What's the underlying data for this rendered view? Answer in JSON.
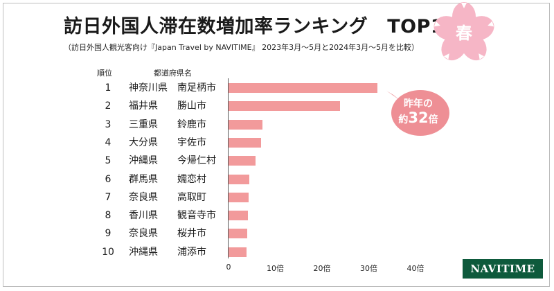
{
  "header": {
    "title": "訪日外国人滞在数増加率ランキング",
    "title_suffix": "TOP10",
    "subtitle": "（訪日外国人観光客向け『Japan Travel by NAVITIME』 2023年3月～5月と2024年3月～5月を比較）",
    "season_badge": "春"
  },
  "columns": {
    "rank": "順位",
    "region": "都道府県名"
  },
  "callout": {
    "line1": "昨年の",
    "prefix": "約",
    "number": "32",
    "suffix": "倍"
  },
  "logo": "NAVITIME",
  "colors": {
    "bar": "#f29a9b",
    "callout": "#ee8f95",
    "blossom": "#f6b6c6",
    "logo": "#0e5a3c"
  },
  "chart_data": {
    "type": "bar",
    "orientation": "horizontal",
    "rows": [
      {
        "rank": "1",
        "prefecture": "神奈川県",
        "city": "南足柄市",
        "value": 31.8
      },
      {
        "rank": "2",
        "prefecture": "福井県",
        "city": "勝山市",
        "value": 23.9
      },
      {
        "rank": "3",
        "prefecture": "三重県",
        "city": "鈴鹿市",
        "value": 7.3
      },
      {
        "rank": "4",
        "prefecture": "大分県",
        "city": "宇佐市",
        "value": 6.9
      },
      {
        "rank": "5",
        "prefecture": "沖縄県",
        "city": "今帰仁村",
        "value": 5.8
      },
      {
        "rank": "6",
        "prefecture": "群馬県",
        "city": "嬬恋村",
        "value": 4.5
      },
      {
        "rank": "7",
        "prefecture": "奈良県",
        "city": "高取町",
        "value": 4.3
      },
      {
        "rank": "8",
        "prefecture": "香川県",
        "city": "観音寺市",
        "value": 4.1
      },
      {
        "rank": "9",
        "prefecture": "奈良県",
        "city": "桜井市",
        "value": 4.0
      },
      {
        "rank": "10",
        "prefecture": "沖縄県",
        "city": "浦添市",
        "value": 3.8
      }
    ],
    "ticks": [
      {
        "value": 0,
        "label": "0"
      },
      {
        "value": 10,
        "label": "10倍"
      },
      {
        "value": 20,
        "label": "20倍"
      },
      {
        "value": 30,
        "label": "30倍"
      },
      {
        "value": 40,
        "label": "40倍"
      }
    ],
    "xlim": [
      0,
      40
    ],
    "grid": false
  }
}
